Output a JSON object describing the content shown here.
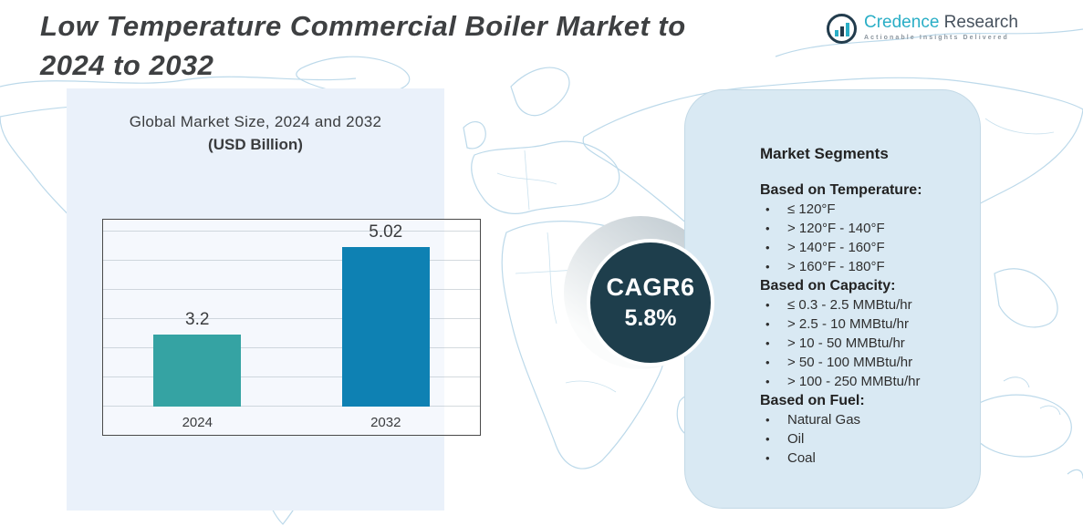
{
  "header": {
    "title_line1": "Low Temperature Commercial Boiler Market to",
    "title_line2": "2024 to 2032"
  },
  "logo": {
    "brand_word1": "Credence",
    "brand_word2": "Research",
    "tagline": "Actionable Insights Delivered",
    "icon": "bar-chart-circle-icon",
    "brand_teal": "#2aaec6",
    "brand_dark": "#47525e"
  },
  "chart_data": {
    "type": "bar",
    "title": "Global Market Size, 2024 and 2032",
    "subtitle": "(USD Billion)",
    "categories": [
      "2024",
      "2032"
    ],
    "values": [
      3.2,
      5.02
    ],
    "data_labels": [
      "3.2",
      "5.02"
    ],
    "bar_colors": [
      "#35a3a3",
      "#0e81b3"
    ],
    "ylim": [
      1.7,
      5.6
    ],
    "grid": true,
    "legend": "none",
    "xlabel": "",
    "ylabel": ""
  },
  "cagr_badge": {
    "line1": "CAGR6",
    "line2": "5.8%",
    "background": "#1e3e4c",
    "text_color": "#ffffff"
  },
  "segments_panel": {
    "title": "Market Segments",
    "background": "#d9e9f3",
    "groups": [
      {
        "heading": "Based on Temperature:",
        "items": [
          "≤ 120°F",
          "> 120°F - 140°F",
          "> 140°F - 160°F",
          "> 160°F - 180°F"
        ]
      },
      {
        "heading": "Based on Capacity:",
        "items": [
          "≤ 0.3 - 2.5 MMBtu/hr",
          "> 2.5 - 10 MMBtu/hr",
          "> 10 - 50 MMBtu/hr",
          "> 50 - 100 MMBtu/hr",
          "> 100 - 250 MMBtu/hr"
        ]
      },
      {
        "heading": "Based on Fuel:",
        "items": [
          "Natural Gas",
          "Oil",
          "Coal"
        ]
      }
    ]
  }
}
